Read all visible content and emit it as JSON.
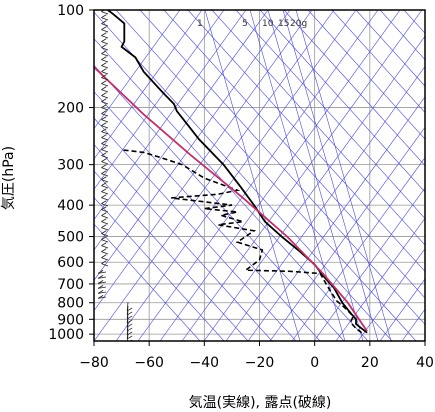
{
  "chart_data": {
    "type": "line",
    "title": "",
    "xlabel": "気温(実線), 露点(破線)",
    "ylabel": "気圧(hPa)",
    "xlim": [
      -80,
      40
    ],
    "ylim": [
      1050,
      100
    ],
    "y_scale": "log",
    "x_ticks": [
      "−80",
      "−60",
      "−40",
      "−20",
      "0",
      "20",
      "40"
    ],
    "x_tick_values": [
      -80,
      -60,
      -40,
      -20,
      0,
      20,
      40
    ],
    "y_ticks": [
      "100",
      "200",
      "300",
      "400",
      "500",
      "600",
      "700",
      "800",
      "900",
      "1000"
    ],
    "y_tick_values": [
      100,
      200,
      300,
      400,
      500,
      600,
      700,
      800,
      900,
      1000
    ],
    "mixing_ratio_labels": [
      "1",
      "5",
      "10",
      "15",
      "20g"
    ],
    "grid": true,
    "series": [
      {
        "style": "solid",
        "color": "#000000",
        "points": [
          {
            "t": 19,
            "p": 990
          },
          {
            "t": 17,
            "p": 960
          },
          {
            "t": 15,
            "p": 930
          },
          {
            "t": 15,
            "p": 900
          },
          {
            "t": 13,
            "p": 860
          },
          {
            "t": 10,
            "p": 800
          },
          {
            "t": 7,
            "p": 720
          },
          {
            "t": 3,
            "p": 660
          },
          {
            "t": 0,
            "p": 610
          },
          {
            "t": -6,
            "p": 550
          },
          {
            "t": -12,
            "p": 500
          },
          {
            "t": -18,
            "p": 450
          },
          {
            "t": -22,
            "p": 400
          },
          {
            "t": -27,
            "p": 350
          },
          {
            "t": -33,
            "p": 300
          },
          {
            "t": -42,
            "p": 250
          },
          {
            "t": -50,
            "p": 205
          },
          {
            "t": -51,
            "p": 195
          },
          {
            "t": -55,
            "p": 180
          },
          {
            "t": -62,
            "p": 155
          },
          {
            "t": -65,
            "p": 140
          },
          {
            "t": -70,
            "p": 130
          },
          {
            "t": -69,
            "p": 125
          },
          {
            "t": -69,
            "p": 110
          },
          {
            "t": -73,
            "p": 103
          },
          {
            "t": -75,
            "p": 100
          }
        ]
      },
      {
        "style": "dashed",
        "color": "#000000",
        "points": [
          {
            "t": 17,
            "p": 990
          },
          {
            "t": 15,
            "p": 960
          },
          {
            "t": 13,
            "p": 920
          },
          {
            "t": 14,
            "p": 880
          },
          {
            "t": 11,
            "p": 830
          },
          {
            "t": 8,
            "p": 790
          },
          {
            "t": 5,
            "p": 720
          },
          {
            "t": 2,
            "p": 650
          },
          {
            "t": -9,
            "p": 640
          },
          {
            "t": -25,
            "p": 635
          },
          {
            "t": -20,
            "p": 590
          },
          {
            "t": -19,
            "p": 550
          },
          {
            "t": -28,
            "p": 520
          },
          {
            "t": -22,
            "p": 480
          },
          {
            "t": -35,
            "p": 460
          },
          {
            "t": -26,
            "p": 450
          },
          {
            "t": -34,
            "p": 430
          },
          {
            "t": -28,
            "p": 420
          },
          {
            "t": -40,
            "p": 410
          },
          {
            "t": -30,
            "p": 400
          },
          {
            "t": -52,
            "p": 380
          },
          {
            "t": -35,
            "p": 370
          },
          {
            "t": -28,
            "p": 360
          },
          {
            "t": -40,
            "p": 330
          },
          {
            "t": -48,
            "p": 300
          },
          {
            "t": -56,
            "p": 285
          },
          {
            "t": -62,
            "p": 275
          },
          {
            "t": -70,
            "p": 270
          }
        ]
      },
      {
        "style": "solid",
        "color": "#c0306a",
        "points": [
          {
            "t": 19,
            "p": 980
          },
          {
            "t": 12,
            "p": 800
          },
          {
            "t": 3,
            "p": 650
          },
          {
            "t": -10,
            "p": 500
          },
          {
            "t": -26,
            "p": 380
          },
          {
            "t": -45,
            "p": 280
          },
          {
            "t": -62,
            "p": 210
          },
          {
            "t": -80,
            "p": 150
          }
        ]
      }
    ]
  }
}
